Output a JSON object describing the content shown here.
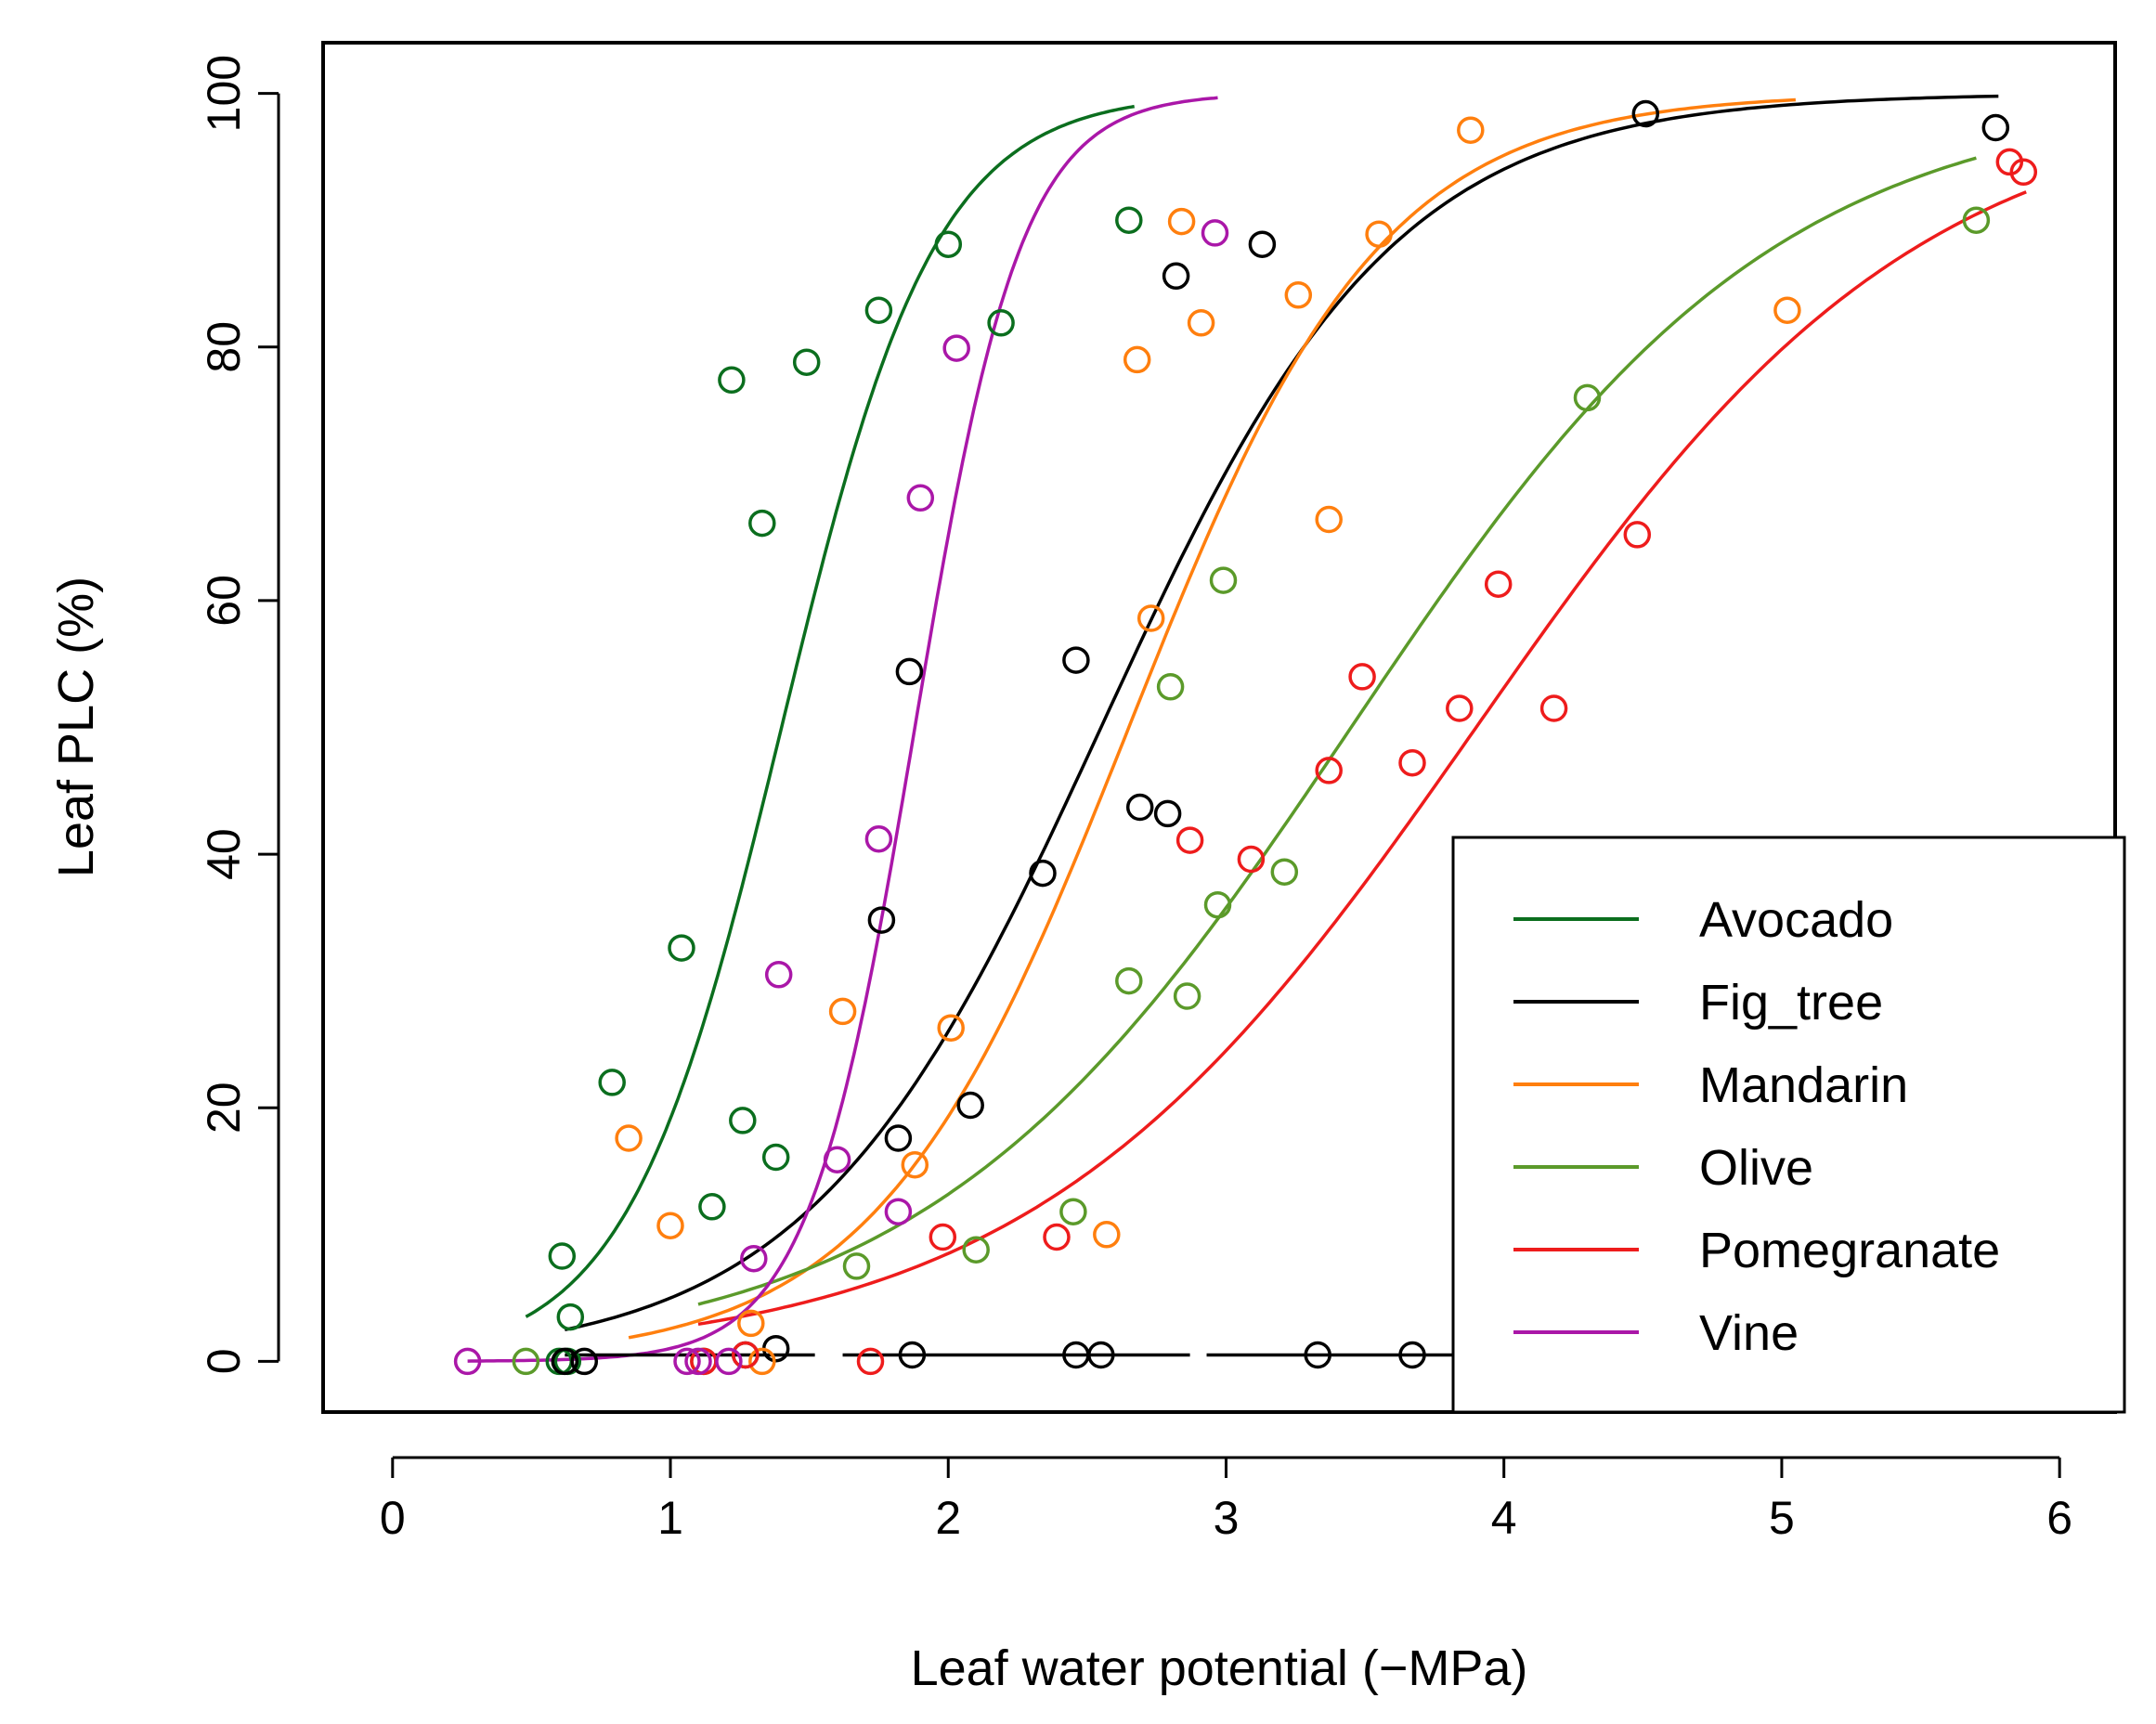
{
  "chart_data": {
    "type": "scatter",
    "title": "",
    "xlabel": "Leaf water potential (−MPa)",
    "ylabel": "Leaf PLC (%)",
    "xlim": [
      -0.25,
      6.2
    ],
    "ylim": [
      -4,
      104
    ],
    "xticks": [
      "0",
      "1",
      "2",
      "3",
      "4",
      "5",
      "6"
    ],
    "yticks": [
      "0",
      "20",
      "40",
      "60",
      "80",
      "100"
    ],
    "legend_position": "bottom-right",
    "fig_tree_zero_line": [
      [
        0.62,
        1.52
      ],
      [
        1.62,
        2.87
      ],
      [
        2.93,
        3.87
      ]
    ],
    "series": [
      {
        "name": "Avocado",
        "color": "#0b6e1e",
        "curve": {
          "p50": 1.4,
          "slope": 3.6,
          "xmin": 0.48,
          "xmax": 2.67
        },
        "points": [
          [
            0.6,
            0
          ],
          [
            0.63,
            0
          ],
          [
            0.64,
            3.5
          ],
          [
            0.61,
            8.3
          ],
          [
            0.79,
            22
          ],
          [
            1.04,
            32.6
          ],
          [
            1.15,
            12.2
          ],
          [
            1.26,
            19
          ],
          [
            1.38,
            16.1
          ],
          [
            1.22,
            77.4
          ],
          [
            1.33,
            66.1
          ],
          [
            1.49,
            78.8
          ],
          [
            1.75,
            82.9
          ],
          [
            2.0,
            88.1
          ],
          [
            2.19,
            81.9
          ],
          [
            2.65,
            90
          ]
        ]
      },
      {
        "name": "Fig_tree",
        "color": "#000000",
        "curve": {
          "p50": 2.55,
          "slope": 1.9,
          "xmin": 0.62,
          "xmax": 5.78
        },
        "points": [
          [
            0.62,
            0
          ],
          [
            0.69,
            0
          ],
          [
            1.27,
            0.5
          ],
          [
            1.38,
            1
          ],
          [
            1.87,
            0.5
          ],
          [
            2.46,
            0.5
          ],
          [
            2.55,
            0.5
          ],
          [
            3.33,
            0.5
          ],
          [
            3.67,
            0.5
          ],
          [
            1.76,
            34.8
          ],
          [
            1.82,
            17.6
          ],
          [
            1.86,
            54.4
          ],
          [
            2.08,
            20.2
          ],
          [
            2.34,
            38.5
          ],
          [
            2.46,
            55.3
          ],
          [
            2.69,
            43.7
          ],
          [
            2.79,
            43.2
          ],
          [
            2.82,
            85.6
          ],
          [
            3.13,
            88.1
          ],
          [
            4.51,
            98.4
          ],
          [
            5.77,
            97.3
          ]
        ]
      },
      {
        "name": "Mandarin",
        "color": "#ff7f0e",
        "curve": {
          "p50": 2.65,
          "slope": 2.2,
          "xmin": 0.85,
          "xmax": 5.05
        },
        "points": [
          [
            0.85,
            17.6
          ],
          [
            1.0,
            10.7
          ],
          [
            1.29,
            3
          ],
          [
            1.33,
            0
          ],
          [
            1.62,
            27.6
          ],
          [
            1.88,
            15.5
          ],
          [
            2.01,
            26.3
          ],
          [
            2.57,
            10
          ],
          [
            2.68,
            79
          ],
          [
            2.73,
            58.6
          ],
          [
            2.84,
            89.9
          ],
          [
            2.91,
            81.9
          ],
          [
            3.26,
            84.1
          ],
          [
            3.37,
            66.4
          ],
          [
            3.55,
            88.9
          ],
          [
            3.88,
            97.1
          ],
          [
            5.02,
            82.9
          ]
        ]
      },
      {
        "name": "Olive",
        "color": "#5b9a2a",
        "curve": {
          "p50": 3.45,
          "slope": 1.3,
          "xmin": 1.1,
          "xmax": 5.7
        },
        "points": [
          [
            0.48,
            0
          ],
          [
            1.12,
            0
          ],
          [
            1.67,
            7.5
          ],
          [
            2.1,
            8.8
          ],
          [
            2.45,
            11.8
          ],
          [
            2.65,
            30
          ],
          [
            2.86,
            28.8
          ],
          [
            2.8,
            53.2
          ],
          [
            2.97,
            36
          ],
          [
            2.99,
            61.6
          ],
          [
            3.21,
            38.6
          ],
          [
            4.3,
            76
          ],
          [
            5.7,
            90
          ]
        ]
      },
      {
        "name": "Pomegranate",
        "color": "#ee1c1c",
        "curve": {
          "p50": 3.9,
          "slope": 1.25,
          "xmin": 1.1,
          "xmax": 5.88
        },
        "points": [
          [
            1.12,
            0
          ],
          [
            1.27,
            0.5
          ],
          [
            1.72,
            0
          ],
          [
            1.98,
            9.8
          ],
          [
            2.39,
            9.8
          ],
          [
            2.87,
            41.1
          ],
          [
            3.09,
            39.6
          ],
          [
            3.37,
            46.6
          ],
          [
            3.49,
            54
          ],
          [
            3.67,
            47.2
          ],
          [
            3.84,
            51.5
          ],
          [
            3.98,
            61.3
          ],
          [
            4.18,
            51.5
          ],
          [
            4.48,
            65.2
          ],
          [
            5.82,
            94.6
          ],
          [
            5.87,
            93.8
          ]
        ]
      },
      {
        "name": "Vine",
        "color": "#aa17a8",
        "curve": {
          "p50": 1.88,
          "slope": 5.2,
          "xmin": 0.27,
          "xmax": 2.97
        },
        "points": [
          [
            0.27,
            0
          ],
          [
            1.06,
            0
          ],
          [
            1.1,
            0
          ],
          [
            1.21,
            0
          ],
          [
            1.3,
            8.1
          ],
          [
            1.39,
            30.5
          ],
          [
            1.6,
            15.9
          ],
          [
            1.75,
            41.2
          ],
          [
            1.82,
            11.8
          ],
          [
            1.9,
            68.1
          ],
          [
            2.03,
            79.9
          ],
          [
            2.96,
            89
          ]
        ]
      }
    ]
  }
}
